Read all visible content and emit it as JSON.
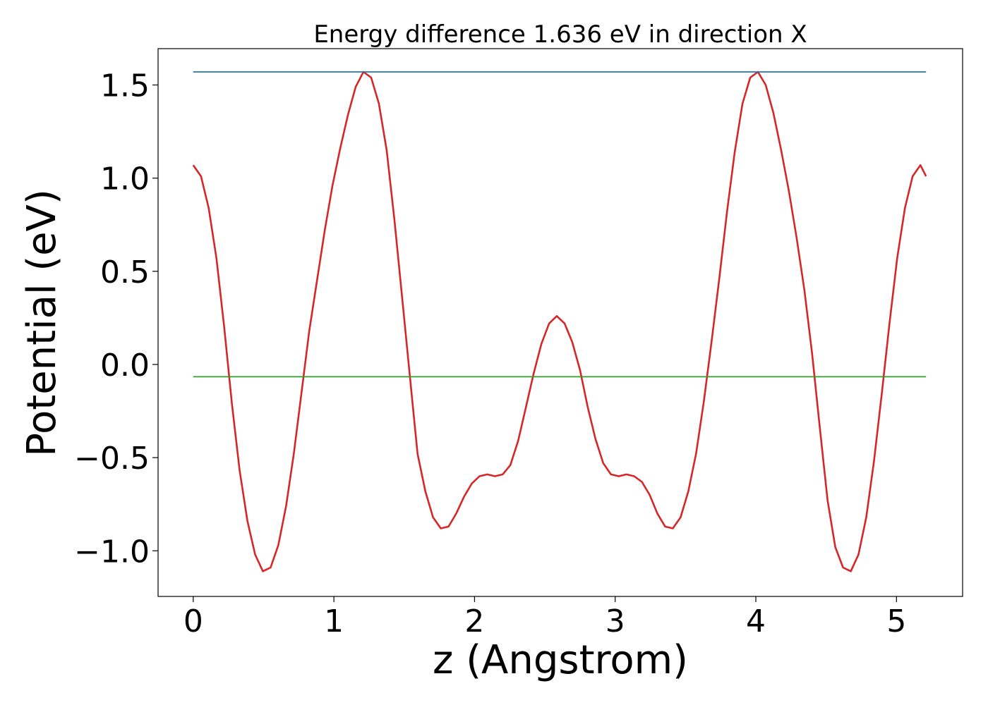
{
  "chart_data": {
    "type": "line",
    "title": "Energy difference 1.636 eV in direction X",
    "xlabel": "z (Angstrom)",
    "ylabel": "Potential (eV)",
    "xlim": [
      -0.25,
      5.47
    ],
    "ylim": [
      -1.245,
      1.695
    ],
    "xticks": [
      0,
      1,
      2,
      3,
      4,
      5
    ],
    "xtick_labels": [
      "0",
      "1",
      "2",
      "3",
      "4",
      "5"
    ],
    "yticks": [
      -1.0,
      -0.5,
      0.0,
      0.5,
      1.0,
      1.5
    ],
    "ytick_labels": [
      "−1.0",
      "−0.5",
      "0.0",
      "0.5",
      "1.0",
      "1.5"
    ],
    "grid": false,
    "series": [
      {
        "color": "#d62728",
        "x": [
          0.0,
          0.055,
          0.11,
          0.165,
          0.22,
          0.275,
          0.33,
          0.385,
          0.44,
          0.495,
          0.55,
          0.605,
          0.66,
          0.715,
          0.77,
          0.825,
          0.88,
          0.935,
          0.99,
          1.045,
          1.1,
          1.155,
          1.21,
          1.265,
          1.32,
          1.375,
          1.43,
          1.485,
          1.54,
          1.595,
          1.65,
          1.705,
          1.76,
          1.815,
          1.87,
          1.925,
          1.98,
          2.035,
          2.09,
          2.145,
          2.2,
          2.255,
          2.31,
          2.365,
          2.42,
          2.475,
          2.53,
          2.585,
          2.64,
          2.695,
          2.75,
          2.805,
          2.86,
          2.915,
          2.97,
          3.025,
          3.08,
          3.135,
          3.19,
          3.245,
          3.3,
          3.355,
          3.41,
          3.465,
          3.52,
          3.575,
          3.63,
          3.685,
          3.74,
          3.795,
          3.85,
          3.905,
          3.96,
          4.015,
          4.07,
          4.125,
          4.18,
          4.235,
          4.29,
          4.345,
          4.4,
          4.455,
          4.51,
          4.565,
          4.62,
          4.675,
          4.73,
          4.785,
          4.84,
          4.895,
          4.95,
          5.005,
          5.06,
          5.115,
          5.17,
          5.21
        ],
        "y": [
          1.07,
          1.01,
          0.84,
          0.57,
          0.2,
          -0.21,
          -0.57,
          -0.84,
          -1.02,
          -1.11,
          -1.09,
          -0.97,
          -0.76,
          -0.48,
          -0.15,
          0.18,
          0.45,
          0.72,
          0.96,
          1.16,
          1.34,
          1.49,
          1.57,
          1.54,
          1.4,
          1.15,
          0.78,
          0.36,
          -0.06,
          -0.48,
          -0.68,
          -0.82,
          -0.88,
          -0.87,
          -0.8,
          -0.71,
          -0.64,
          -0.6,
          -0.59,
          -0.6,
          -0.59,
          -0.54,
          -0.41,
          -0.23,
          -0.05,
          0.11,
          0.22,
          0.26,
          0.22,
          0.12,
          -0.03,
          -0.23,
          -0.4,
          -0.53,
          -0.59,
          -0.6,
          -0.59,
          -0.6,
          -0.63,
          -0.7,
          -0.8,
          -0.87,
          -0.88,
          -0.82,
          -0.68,
          -0.48,
          -0.2,
          0.12,
          0.46,
          0.82,
          1.14,
          1.4,
          1.54,
          1.57,
          1.5,
          1.35,
          1.15,
          0.93,
          0.68,
          0.4,
          0.06,
          -0.34,
          -0.73,
          -0.98,
          -1.09,
          -1.11,
          -1.02,
          -0.82,
          -0.52,
          -0.16,
          0.22,
          0.57,
          0.84,
          1.01,
          1.07,
          1.01
        ]
      },
      {
        "color": "#1f77b4",
        "x": [
          0.0,
          5.21
        ],
        "y": [
          1.57,
          1.57
        ]
      },
      {
        "color": "#2ca02c",
        "x": [
          0.0,
          5.21
        ],
        "y": [
          -0.066,
          -0.066
        ]
      }
    ]
  }
}
